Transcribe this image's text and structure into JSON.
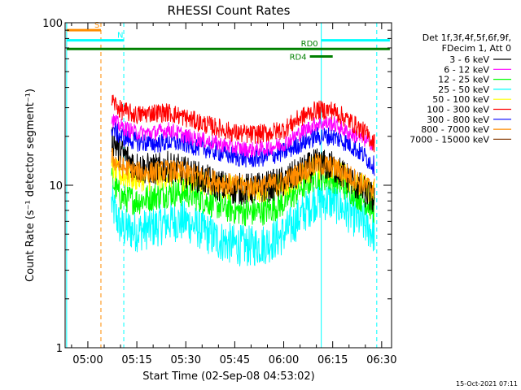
{
  "chart_data": {
    "type": "line",
    "title": "RHESSI Count Rates",
    "xlabel": "Start Time (02-Sep-08 04:53:02)",
    "ylabel": "Count Rate (s⁻¹ detector segment⁻¹)",
    "y_scale": "log",
    "ylim": [
      1,
      100
    ],
    "y_ticks": [
      1,
      10,
      100
    ],
    "y_tick_labels": [
      "1",
      "10",
      "100"
    ],
    "x_range_minutes": [
      "04:53:02",
      "06:33:02"
    ],
    "x_ticks": [
      "05:00",
      "05:15",
      "05:30",
      "05:45",
      "06:00",
      "06:15",
      "06:30"
    ],
    "data_start": "05:06:40",
    "data_end": "06:28:00",
    "legend_header": [
      "Det 1f,3f,4f,5f,6f,9f,",
      "FDecim 1, Att 0"
    ],
    "legend_placement": "right",
    "series": [
      {
        "name": "3 - 6 keV",
        "color": "#000000",
        "x": [
          "05:07",
          "05:10",
          "05:15",
          "05:20",
          "05:25",
          "05:30",
          "05:35",
          "05:40",
          "05:45",
          "05:50",
          "05:55",
          "06:00",
          "06:05",
          "06:10",
          "06:15",
          "06:20",
          "06:25",
          "06:28"
        ],
        "values": [
          20,
          16,
          13,
          12.5,
          13,
          12,
          11,
          10,
          9.5,
          9.5,
          9.8,
          10.5,
          12,
          13.5,
          13,
          11,
          9,
          8
        ]
      },
      {
        "name": "6 - 12 keV",
        "color": "#ff00ff",
        "x": [
          "05:07",
          "05:10",
          "05:15",
          "05:20",
          "05:25",
          "05:30",
          "05:35",
          "05:40",
          "05:45",
          "05:50",
          "05:55",
          "06:00",
          "06:05",
          "06:10",
          "06:15",
          "06:20",
          "06:25",
          "06:28"
        ],
        "values": [
          26,
          23,
          21,
          21,
          22,
          20,
          19,
          18,
          17,
          16.5,
          17,
          18,
          21,
          24,
          24,
          21,
          19,
          18
        ]
      },
      {
        "name": "12 - 25 keV",
        "color": "#00ff00",
        "x": [
          "05:07",
          "05:10",
          "05:15",
          "05:20",
          "05:25",
          "05:30",
          "05:35",
          "05:40",
          "05:45",
          "05:50",
          "05:55",
          "06:00",
          "06:05",
          "06:10",
          "06:15",
          "06:20",
          "06:25",
          "06:28"
        ],
        "values": [
          11,
          8.5,
          8,
          8.5,
          9,
          9,
          8.2,
          7.5,
          7,
          6.8,
          7,
          7.8,
          9.5,
          11.5,
          11,
          9.5,
          8,
          7
        ]
      },
      {
        "name": "25 - 50 keV",
        "color": "#00ffff",
        "x": [
          "05:07",
          "05:10",
          "05:15",
          "05:20",
          "05:25",
          "05:30",
          "05:35",
          "05:40",
          "05:45",
          "05:50",
          "05:55",
          "06:00",
          "06:05",
          "06:10",
          "06:15",
          "06:20",
          "06:25",
          "06:28"
        ],
        "values": [
          8,
          5.5,
          5.2,
          5.5,
          6,
          6,
          5.3,
          4.6,
          4.3,
          4.2,
          4.4,
          5,
          6.4,
          8.2,
          8,
          6.8,
          5.7,
          5
        ]
      },
      {
        "name": "50 - 100 keV",
        "color": "#ffff00",
        "x": [
          "05:07",
          "05:10",
          "05:15",
          "05:20",
          "05:25",
          "05:30",
          "05:35",
          "05:40",
          "05:45",
          "05:50",
          "05:55",
          "06:00",
          "06:05",
          "06:10",
          "06:15",
          "06:20",
          "06:25",
          "06:28"
        ],
        "values": [
          13,
          11.5,
          11,
          11,
          11.5,
          11,
          10.5,
          10,
          9.5,
          9.3,
          9.5,
          10,
          11.5,
          13,
          12.5,
          11,
          9.5,
          9
        ]
      },
      {
        "name": "100 - 300 keV",
        "color": "#ff0000",
        "x": [
          "05:07",
          "05:10",
          "05:15",
          "05:20",
          "05:25",
          "05:30",
          "05:35",
          "05:40",
          "05:45",
          "05:50",
          "05:55",
          "06:00",
          "06:05",
          "06:10",
          "06:15",
          "06:20",
          "06:25",
          "06:28"
        ],
        "values": [
          34,
          29,
          27,
          28,
          28,
          26,
          24,
          22.5,
          21,
          20.5,
          21,
          22,
          26,
          29,
          29,
          25,
          21,
          18
        ]
      },
      {
        "name": "300 - 800 keV",
        "color": "#0000ff",
        "x": [
          "05:07",
          "05:10",
          "05:15",
          "05:20",
          "05:25",
          "05:30",
          "05:35",
          "05:40",
          "05:45",
          "05:50",
          "05:55",
          "06:00",
          "06:05",
          "06:10",
          "06:15",
          "06:20",
          "06:25",
          "06:28"
        ],
        "values": [
          23,
          20,
          18.5,
          18,
          18.5,
          18,
          17,
          16,
          15,
          14.5,
          15,
          16,
          18,
          20,
          20,
          18,
          15,
          13
        ]
      },
      {
        "name": "800 - 7000 keV",
        "color": "#ff8c00",
        "x": [
          "05:07",
          "05:10",
          "05:15",
          "05:20",
          "05:25",
          "05:30",
          "05:35",
          "05:40",
          "05:45",
          "05:50",
          "05:55",
          "06:00",
          "06:05",
          "06:10",
          "06:15",
          "06:20",
          "06:25",
          "06:28"
        ],
        "values": [
          15,
          13,
          12,
          12,
          12.3,
          12,
          11.2,
          10.5,
          10,
          9.8,
          10,
          10.5,
          12,
          13.5,
          13,
          11.5,
          10,
          9.5
        ]
      },
      {
        "name": "7000 - 15000 keV",
        "color": "#8b4513",
        "x": [],
        "values": []
      }
    ],
    "vertical_markers": [
      {
        "time": "04:53:30",
        "color": "#00ffff",
        "style": "solid"
      },
      {
        "time": "05:04:00",
        "color": "#ff8c00",
        "style": "dashed"
      },
      {
        "time": "05:11:00",
        "color": "#00ffff",
        "style": "dashed"
      },
      {
        "time": "06:11:30",
        "color": "#00ffff",
        "style": "solid"
      },
      {
        "time": "06:28:30",
        "color": "#00ffff",
        "style": "dashed"
      }
    ],
    "flag_bars": [
      {
        "label": "S",
        "color": "#ff8c00",
        "start": "04:53:30",
        "end": "05:04:00",
        "level": 90
      },
      {
        "label": "N",
        "color": "#00ffff",
        "start": "04:53:30",
        "end": "05:11:00",
        "level": 78,
        "segments": [
          [
            "04:53:30",
            "05:11:00"
          ],
          [
            "06:11:30",
            "06:32:30"
          ]
        ]
      },
      {
        "label": "RD0",
        "color": "#008000",
        "start": "04:53:30",
        "end": "06:32:30",
        "level": 69
      },
      {
        "label": "RD4",
        "color": "#008000",
        "start": "06:08:00",
        "end": "06:15:00",
        "level": 62
      }
    ],
    "grid": false
  },
  "timestamp": "15-Oct-2021 07:11"
}
